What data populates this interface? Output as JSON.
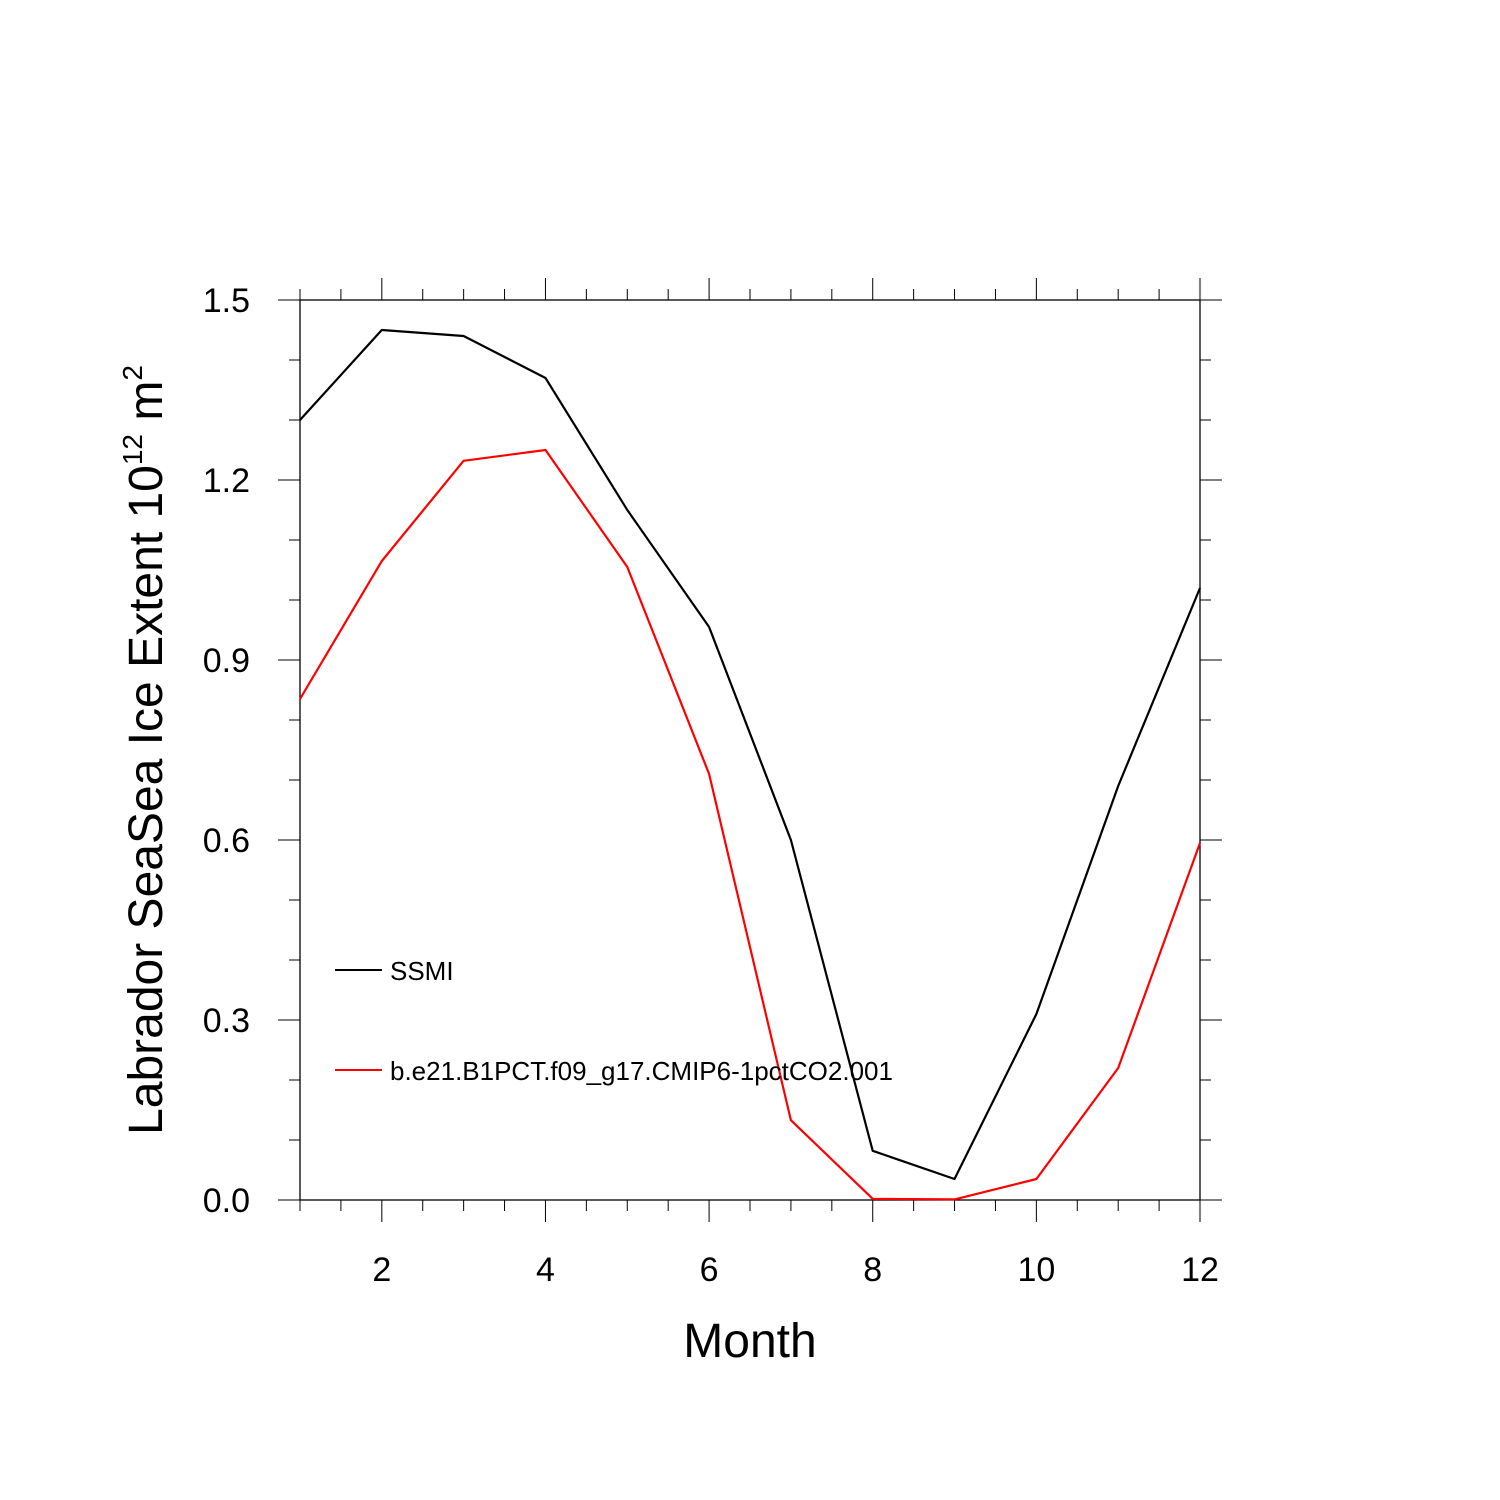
{
  "chart_data": {
    "type": "line",
    "title": "",
    "xlabel": "Month",
    "ylabel": {
      "main": "Labrador SeaSea Ice Extent 10",
      "sup": "12",
      "unit": " m",
      "unit_sup": "2"
    },
    "xlim": [
      1,
      12
    ],
    "ylim": [
      0,
      1.5
    ],
    "x": [
      1,
      2,
      3,
      4,
      5,
      6,
      7,
      8,
      9,
      10,
      11,
      12
    ],
    "xticks": [
      2,
      4,
      6,
      8,
      10,
      12
    ],
    "xtick_labels": [
      "2",
      "4",
      "6",
      "8",
      "10",
      "12"
    ],
    "yticks": [
      0,
      0.3,
      0.6,
      0.9,
      1.2,
      1.5
    ],
    "ytick_labels": [
      "0.0",
      "0.3",
      "0.6",
      "0.9",
      "1.2",
      "1.5"
    ],
    "grid": false,
    "legend_position": "lower-left inside",
    "series": [
      {
        "name": "SSMI",
        "color": "#000000",
        "values": [
          1.3,
          1.45,
          1.44,
          1.37,
          1.15,
          0.955,
          0.6,
          0.082,
          0.035,
          0.31,
          0.69,
          1.02
        ]
      },
      {
        "name": "b.e21.B1PCT.f09_g17.CMIP6-1pctCO2.001",
        "color": "#ff0000",
        "values": [
          0.835,
          1.065,
          1.232,
          1.25,
          1.055,
          0.71,
          0.133,
          0.002,
          0.001,
          0.035,
          0.22,
          0.595
        ]
      }
    ]
  }
}
